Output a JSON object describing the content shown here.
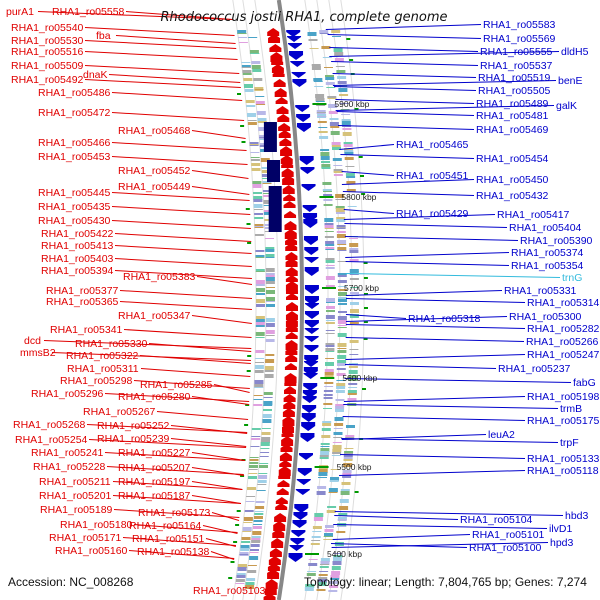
{
  "title": "Rhodococcus jostii RHA1, complete genome",
  "accession": "Accession: NC_008268",
  "summary": "Topology: linear; Length: 7,804,765 bp; Genes: 7,274",
  "colors": {
    "forward": "#e00000",
    "reverse": "#0000cc",
    "trna": "#33bbdd",
    "feature_dark": "#000066",
    "tick_green": "#009900",
    "backbone": "#888888"
  },
  "scale_ticks": [
    "5900 kbp",
    "5800 kbp",
    "5700 kbp",
    "5600 kbp",
    "5500 kbp",
    "5400 kbp"
  ],
  "left_labels": [
    {
      "text": "purA1"
    },
    {
      "text": "RHA1_ro05558"
    },
    {
      "text": "RHA1_ro05540"
    },
    {
      "text": "fba"
    },
    {
      "text": "RHA1_ro05530"
    },
    {
      "text": "RHA1_ro05516"
    },
    {
      "text": "RHA1_ro05509"
    },
    {
      "text": "dnaK"
    },
    {
      "text": "RHA1_ro05492"
    },
    {
      "text": "RHA1_ro05486"
    },
    {
      "text": "RHA1_ro05472"
    },
    {
      "text": "RHA1_ro05468"
    },
    {
      "text": "RHA1_ro05466"
    },
    {
      "text": "RHA1_ro05453"
    },
    {
      "text": "RHA1_ro05452"
    },
    {
      "text": "RHA1_ro05449"
    },
    {
      "text": "RHA1_ro05445"
    },
    {
      "text": "RHA1_ro05435"
    },
    {
      "text": "RHA1_ro05430"
    },
    {
      "text": "RHA1_ro05422"
    },
    {
      "text": "RHA1_ro05413"
    },
    {
      "text": "RHA1_ro05403"
    },
    {
      "text": "RHA1_ro05394"
    },
    {
      "text": "RHA1_ro05383"
    },
    {
      "text": "RHA1_ro05377"
    },
    {
      "text": "RHA1_ro05365"
    },
    {
      "text": "RHA1_ro05347"
    },
    {
      "text": "RHA1_ro05341"
    },
    {
      "text": "dcd"
    },
    {
      "text": "RHA1_ro05330"
    },
    {
      "text": "mmsB2"
    },
    {
      "text": "RHA1_ro05322"
    },
    {
      "text": "RHA1_ro05311"
    },
    {
      "text": "RHA1_ro05298"
    },
    {
      "text": "RHA1_ro05285"
    },
    {
      "text": "RHA1_ro05296"
    },
    {
      "text": "RHA1_ro05280"
    },
    {
      "text": "RHA1_ro05267"
    },
    {
      "text": "RHA1_ro05268"
    },
    {
      "text": "RHA1_ro05252"
    },
    {
      "text": "RHA1_ro05254"
    },
    {
      "text": "RHA1_ro05239"
    },
    {
      "text": "RHA1_ro05241"
    },
    {
      "text": "RHA1_ro05227"
    },
    {
      "text": "RHA1_ro05228"
    },
    {
      "text": "RHA1_ro05207"
    },
    {
      "text": "RHA1_ro05211"
    },
    {
      "text": "RHA1_ro05197"
    },
    {
      "text": "RHA1_ro05201"
    },
    {
      "text": "RHA1_ro05187"
    },
    {
      "text": "RHA1_ro05189"
    },
    {
      "text": "RHA1_ro05173"
    },
    {
      "text": "RHA1_ro05180"
    },
    {
      "text": "RHA1_ro05164"
    },
    {
      "text": "RHA1_ro05171"
    },
    {
      "text": "RHA1_ro05151"
    },
    {
      "text": "RHA1_ro05160"
    },
    {
      "text": "RHA1_ro05138"
    },
    {
      "text": "RHA1_ro05103"
    }
  ],
  "right_labels": [
    {
      "text": "RHA1_ro05583",
      "type": "gene"
    },
    {
      "text": "RHA1_ro05569",
      "type": "gene"
    },
    {
      "text": "RHA1_ro05555",
      "type": "gene"
    },
    {
      "text": "dldH5",
      "type": "gene"
    },
    {
      "text": "RHA1_ro05537",
      "type": "gene"
    },
    {
      "text": "RHA1_ro05519",
      "type": "gene"
    },
    {
      "text": "benE",
      "type": "gene"
    },
    {
      "text": "RHA1_ro05505",
      "type": "gene"
    },
    {
      "text": "RHA1_ro05489",
      "type": "gene"
    },
    {
      "text": "galK",
      "type": "gene"
    },
    {
      "text": "RHA1_ro05481",
      "type": "gene"
    },
    {
      "text": "RHA1_ro05469",
      "type": "gene"
    },
    {
      "text": "RHA1_ro05465",
      "type": "gene"
    },
    {
      "text": "RHA1_ro05454",
      "type": "gene"
    },
    {
      "text": "RHA1_ro05451",
      "type": "gene"
    },
    {
      "text": "RHA1_ro05450",
      "type": "gene"
    },
    {
      "text": "RHA1_ro05432",
      "type": "gene"
    },
    {
      "text": "RHA1_ro05429",
      "type": "gene"
    },
    {
      "text": "RHA1_ro05417",
      "type": "gene"
    },
    {
      "text": "RHA1_ro05404",
      "type": "gene"
    },
    {
      "text": "RHA1_ro05390",
      "type": "gene"
    },
    {
      "text": "RHA1_ro05374",
      "type": "gene"
    },
    {
      "text": "RHA1_ro05354",
      "type": "gene"
    },
    {
      "text": "trnG",
      "type": "trna"
    },
    {
      "text": "RHA1_ro05331",
      "type": "gene"
    },
    {
      "text": "RHA1_ro05314",
      "type": "gene"
    },
    {
      "text": "RHA1_ro05318",
      "type": "gene"
    },
    {
      "text": "RHA1_ro05300",
      "type": "gene"
    },
    {
      "text": "RHA1_ro05282",
      "type": "gene"
    },
    {
      "text": "RHA1_ro05266",
      "type": "gene"
    },
    {
      "text": "RHA1_ro05247",
      "type": "gene"
    },
    {
      "text": "RHA1_ro05237",
      "type": "gene"
    },
    {
      "text": "fabG",
      "type": "gene"
    },
    {
      "text": "RHA1_ro05198",
      "type": "gene"
    },
    {
      "text": "trmB",
      "type": "gene"
    },
    {
      "text": "RHA1_ro05175",
      "type": "gene"
    },
    {
      "text": "leuA2",
      "type": "gene"
    },
    {
      "text": "trpF",
      "type": "gene"
    },
    {
      "text": "RHA1_ro05133",
      "type": "gene"
    },
    {
      "text": "RHA1_ro05118",
      "type": "gene"
    },
    {
      "text": "RHA1_ro05104",
      "type": "gene"
    },
    {
      "text": "hbd3",
      "type": "gene"
    },
    {
      "text": "RHA1_ro05101",
      "type": "gene"
    },
    {
      "text": "ilvD1",
      "type": "gene"
    },
    {
      "text": "RHA1_ro05100",
      "type": "gene"
    },
    {
      "text": "hpd3",
      "type": "gene"
    }
  ]
}
